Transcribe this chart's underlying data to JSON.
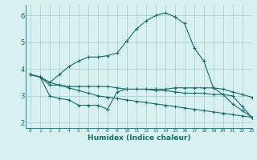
{
  "xlabel": "Humidex (Indice chaleur)",
  "background_color": "#d8f0f0",
  "line_color": "#1a6b6b",
  "grid_color": "#a8cccc",
  "xlim": [
    -0.5,
    23
  ],
  "ylim": [
    1.8,
    6.4
  ],
  "xticks": [
    0,
    1,
    2,
    3,
    4,
    5,
    6,
    7,
    8,
    9,
    10,
    11,
    12,
    13,
    14,
    15,
    16,
    17,
    18,
    19,
    20,
    21,
    22,
    23
  ],
  "yticks": [
    2,
    3,
    4,
    5,
    6
  ],
  "line1_x": [
    0,
    1,
    2,
    3,
    4,
    5,
    6,
    7,
    8,
    9,
    10,
    11,
    12,
    13,
    14,
    15,
    16,
    17,
    18,
    19,
    20,
    21,
    22,
    23
  ],
  "line1_y": [
    3.8,
    3.7,
    3.4,
    3.4,
    3.35,
    3.35,
    3.35,
    3.35,
    3.35,
    3.3,
    3.25,
    3.25,
    3.25,
    3.25,
    3.25,
    3.3,
    3.3,
    3.3,
    3.3,
    3.3,
    3.25,
    3.15,
    3.05,
    2.95
  ],
  "line2_x": [
    0,
    1,
    2,
    3,
    4,
    5,
    6,
    7,
    8,
    9,
    10,
    11,
    12,
    13,
    14,
    15,
    16,
    17,
    18,
    19,
    20,
    21,
    22,
    23
  ],
  "line2_y": [
    3.8,
    3.7,
    3.0,
    2.9,
    2.85,
    2.65,
    2.65,
    2.65,
    2.5,
    3.15,
    3.25,
    3.25,
    3.25,
    3.2,
    3.2,
    3.15,
    3.1,
    3.1,
    3.1,
    3.05,
    3.05,
    3.0,
    2.6,
    2.2
  ],
  "line3_x": [
    0,
    1,
    2,
    3,
    4,
    5,
    6,
    7,
    8,
    9,
    10,
    11,
    12,
    13,
    14,
    15,
    16,
    17,
    18,
    19,
    20,
    21,
    22,
    23
  ],
  "line3_y": [
    3.8,
    3.7,
    3.5,
    3.8,
    4.1,
    4.3,
    4.45,
    4.45,
    4.5,
    4.6,
    5.05,
    5.5,
    5.8,
    6.0,
    6.1,
    5.95,
    5.7,
    4.8,
    4.3,
    3.3,
    3.05,
    2.7,
    2.45,
    2.2
  ],
  "line4_x": [
    0,
    1,
    2,
    3,
    4,
    5,
    6,
    7,
    8,
    9,
    10,
    11,
    12,
    13,
    14,
    15,
    16,
    17,
    18,
    19,
    20,
    21,
    22,
    23
  ],
  "line4_y": [
    3.8,
    3.7,
    3.5,
    3.4,
    3.3,
    3.2,
    3.1,
    3.0,
    2.95,
    2.9,
    2.85,
    2.8,
    2.75,
    2.7,
    2.65,
    2.6,
    2.55,
    2.5,
    2.45,
    2.4,
    2.35,
    2.3,
    2.25,
    2.2
  ]
}
